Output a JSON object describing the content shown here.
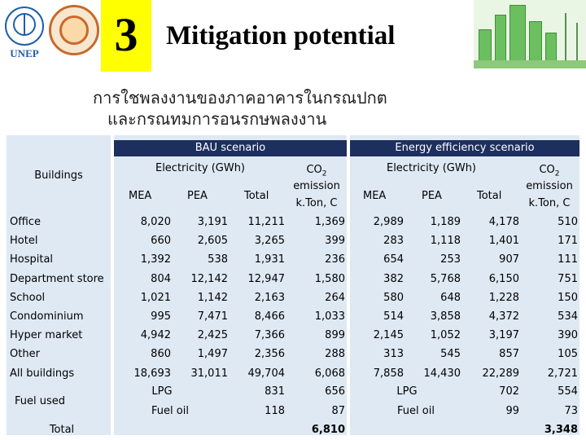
{
  "header": {
    "logo_text": "UNEP",
    "slide_number": "3",
    "title": "Mitigation potential",
    "subtitle_line1": "การใชพลงงานของภาคอาคารในกรณปกต",
    "subtitle_line2": "และกรณทมการอนรกษพลงงาน"
  },
  "table": {
    "bau_label": "BAU scenario",
    "ee_label": "Energy efficiency scenario",
    "buildings_label": "Buildings",
    "electricity_label": "Electricity (GWh)",
    "co2_label": "CO",
    "co2_sub": "2",
    "emission_label": "emission",
    "unit_label": "k.Ton, C",
    "col_mea": "MEA",
    "col_pea": "PEA",
    "col_total": "Total",
    "rows": [
      {
        "name": "Office",
        "bau_mea": "8,020",
        "bau_pea": "3,191",
        "bau_total": "11,211",
        "bau_co2": "1,369",
        "ee_mea": "2,989",
        "ee_pea": "1,189",
        "ee_total": "4,178",
        "ee_co2": "510"
      },
      {
        "name": "Hotel",
        "bau_mea": "660",
        "bau_pea": "2,605",
        "bau_total": "3,265",
        "bau_co2": "399",
        "ee_mea": "283",
        "ee_pea": "1,118",
        "ee_total": "1,401",
        "ee_co2": "171"
      },
      {
        "name": "Hospital",
        "bau_mea": "1,392",
        "bau_pea": "538",
        "bau_total": "1,931",
        "bau_co2": "236",
        "ee_mea": "654",
        "ee_pea": "253",
        "ee_total": "907",
        "ee_co2": "111"
      },
      {
        "name": "Department store",
        "bau_mea": "804",
        "bau_pea": "12,142",
        "bau_total": "12,947",
        "bau_co2": "1,580",
        "ee_mea": "382",
        "ee_pea": "5,768",
        "ee_total": "6,150",
        "ee_co2": "751"
      },
      {
        "name": "School",
        "bau_mea": "1,021",
        "bau_pea": "1,142",
        "bau_total": "2,163",
        "bau_co2": "264",
        "ee_mea": "580",
        "ee_pea": "648",
        "ee_total": "1,228",
        "ee_co2": "150"
      },
      {
        "name": "Condominium",
        "bau_mea": "995",
        "bau_pea": "7,471",
        "bau_total": "8,466",
        "bau_co2": "1,033",
        "ee_mea": "514",
        "ee_pea": "3,858",
        "ee_total": "4,372",
        "ee_co2": "534"
      },
      {
        "name": "Hyper market",
        "bau_mea": "4,942",
        "bau_pea": "2,425",
        "bau_total": "7,366",
        "bau_co2": "899",
        "ee_mea": "2,145",
        "ee_pea": "1,052",
        "ee_total": "3,197",
        "ee_co2": "390"
      },
      {
        "name": "Other",
        "bau_mea": "860",
        "bau_pea": "1,497",
        "bau_total": "2,356",
        "bau_co2": "288",
        "ee_mea": "313",
        "ee_pea": "545",
        "ee_total": "857",
        "ee_co2": "105"
      },
      {
        "name": "All buildings",
        "bau_mea": "18,693",
        "bau_pea": "31,011",
        "bau_total": "49,704",
        "bau_co2": "6,068",
        "ee_mea": "7,858",
        "ee_pea": "14,430",
        "ee_total": "22,289",
        "ee_co2": "2,721"
      }
    ],
    "fuel_label": "Fuel used",
    "lpg_label": "LPG",
    "fuel_oil_label": "Fuel oil",
    "bau_lpg_total": "831",
    "bau_lpg_co2": "656",
    "bau_oil_total": "118",
    "bau_oil_co2": "87",
    "ee_lpg_total": "702",
    "ee_lpg_co2": "554",
    "ee_oil_total": "99",
    "ee_oil_co2": "73",
    "total_label": "Total",
    "bau_grand_co2": "6,810",
    "ee_grand_co2": "3,348"
  }
}
